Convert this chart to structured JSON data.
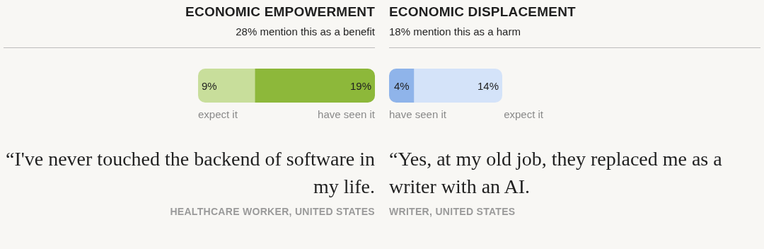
{
  "chart_data": [
    {
      "type": "bar",
      "title": "ECONOMIC EMPOWERMENT",
      "subtitle": "28% mention this as a benefit",
      "orientation": "horizontal",
      "stacked": true,
      "categories": [
        null
      ],
      "series": [
        {
          "name": "expect it",
          "color": "#c8de9b",
          "values": [
            9
          ],
          "value_labels": [
            "9%"
          ]
        },
        {
          "name": "have seen it",
          "color": "#8db83a",
          "values": [
            19
          ],
          "value_labels": [
            "19%"
          ]
        }
      ],
      "annotations": [
        "“I've never touched the backend of software in my life.",
        "HEALTHCARE WORKER, UNITED STATES"
      ]
    },
    {
      "type": "bar",
      "title": "ECONOMIC DISPLACEMENT",
      "subtitle": "18% mention this as a harm",
      "orientation": "horizontal",
      "stacked": true,
      "categories": [
        null
      ],
      "series": [
        {
          "name": "have seen it",
          "color": "#8fb4ea",
          "values": [
            4
          ],
          "value_labels": [
            "4%"
          ]
        },
        {
          "name": "expect it",
          "color": "#d4e3f9",
          "values": [
            14
          ],
          "value_labels": [
            "14%"
          ]
        }
      ],
      "annotations": [
        "“Yes, at my old job, they replaced me as a writer with an AI.",
        "WRITER, UNITED STATES"
      ]
    }
  ]
}
